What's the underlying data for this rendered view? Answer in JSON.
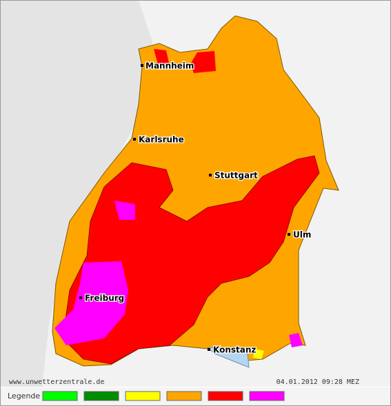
{
  "map": {
    "cities": [
      "Mannheim",
      "Karlsruhe",
      "Stuttgart",
      "Ulm",
      "Freiburg",
      "Konstanz"
    ]
  },
  "footer": {
    "source": "www.unwetterzentrale.de",
    "timestamp": "04.01.2012 09:28 MEZ"
  },
  "legend": {
    "title": "Legende",
    "colors": [
      "#00ff00",
      "#008c00",
      "#ffff00",
      "#ffa500",
      "#ff0000",
      "#ff00ff"
    ]
  }
}
